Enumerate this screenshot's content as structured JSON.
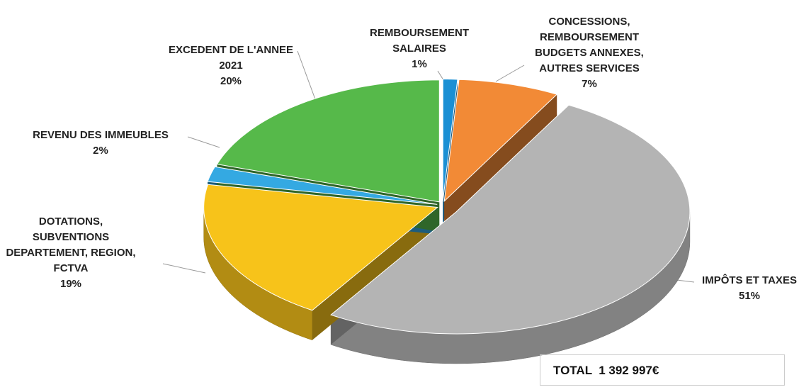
{
  "chart_data": {
    "type": "pie",
    "categories": [
      "REMBOURSEMENT\nSALAIRES",
      "CONCESSIONS,\nREMBOURSEMENT\nBUDGETS ANNEXES,\nAUTRES SERVICES",
      "IMPÔTS ET TAXES",
      "DOTATIONS,\nSUBVENTIONS\nDEPARTEMENT, REGION,\nFCTVA",
      "REVENU DES IMMEUBLES",
      "EXCEDENT DE L'ANNEE\n2021"
    ],
    "values": [
      1,
      7,
      51,
      19,
      2,
      20
    ],
    "value_labels": [
      "1%",
      "7%",
      "51%",
      "19%",
      "2%",
      "20%"
    ],
    "colors": [
      "#1a8fd4",
      "#f28a36",
      "#b4b4b4",
      "#f7c31a",
      "#34a9e2",
      "#56b94a"
    ],
    "total": "TOTAL  1 392 997€"
  }
}
